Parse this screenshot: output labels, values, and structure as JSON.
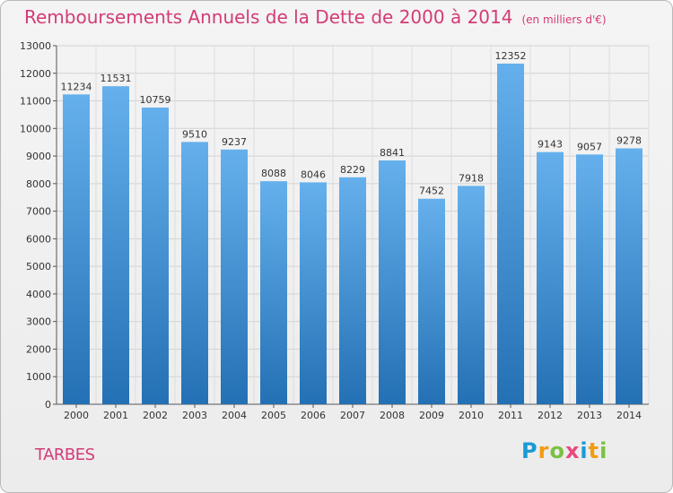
{
  "header": {
    "title": "Remboursements Annuels de la Dette de 2000 à 2014",
    "unit": "(en milliers d'€)"
  },
  "footer": {
    "commune": "TARBES",
    "logo": {
      "P": "P",
      "r": "r",
      "o": "o",
      "x": "x",
      "i1": "i",
      "t": "t",
      "i2": "i"
    }
  },
  "colors": {
    "title": "#d33b77",
    "bar_light": "#63aeea",
    "bar_dark": "#2472b6",
    "logo_p": "#1a9ad6",
    "logo_r": "#f39c12",
    "logo_o": "#7ac142",
    "logo_x": "#e84a7a",
    "logo_i": "#1a9ad6",
    "logo_t": "#f39c12"
  },
  "chart_data": {
    "type": "bar",
    "title": "Remboursements Annuels de la Dette de 2000 à 2014",
    "categories": [
      "2000",
      "2001",
      "2002",
      "2003",
      "2004",
      "2005",
      "2006",
      "2007",
      "2008",
      "2009",
      "2010",
      "2011",
      "2012",
      "2013",
      "2014"
    ],
    "values": [
      11234,
      11531,
      10759,
      9510,
      9237,
      8088,
      8046,
      8229,
      8841,
      7452,
      7918,
      12352,
      9143,
      9057,
      9278
    ],
    "ylim": [
      0,
      13000
    ],
    "yticks": [
      0,
      1000,
      2000,
      3000,
      4000,
      5000,
      6000,
      7000,
      8000,
      9000,
      10000,
      11000,
      12000,
      13000
    ],
    "grid": true,
    "legend": "none"
  }
}
